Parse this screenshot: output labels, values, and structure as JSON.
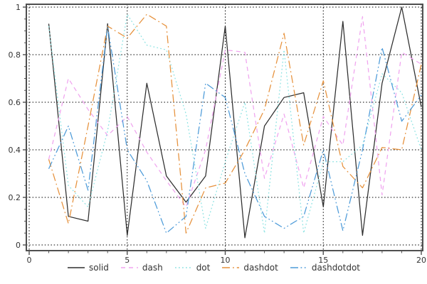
{
  "chart_data": {
    "type": "line",
    "title": "",
    "xlabel": "",
    "ylabel": "",
    "xlim": [
      0,
      20
    ],
    "ylim": [
      0,
      1
    ],
    "x_ticks": [
      0,
      5,
      10,
      15,
      20
    ],
    "x_tick_labels": [
      "0",
      "5",
      "10",
      "15",
      "20"
    ],
    "y_ticks": [
      0,
      0.2,
      0.4,
      0.6,
      0.8,
      1
    ],
    "y_tick_labels": [
      "0",
      "0.2",
      "0.4",
      "0.6",
      "0.8",
      "1"
    ],
    "grid": true,
    "legend_position": "bottom",
    "x": [
      1,
      2,
      3,
      4,
      5,
      6,
      7,
      8,
      9,
      10,
      11,
      12,
      13,
      14,
      15,
      16,
      17,
      18,
      19,
      20
    ],
    "series": [
      {
        "name": "solid",
        "color": "#2e2e2e",
        "dash": "solid",
        "values": [
          0.93,
          0.12,
          0.1,
          0.93,
          0.04,
          0.68,
          0.29,
          0.18,
          0.29,
          0.92,
          0.03,
          0.5,
          0.62,
          0.64,
          0.16,
          0.94,
          0.04,
          0.68,
          1.0,
          0.58
        ]
      },
      {
        "name": "dash",
        "color": "#f0a4ef",
        "dash": "dash",
        "values": [
          0.36,
          0.7,
          0.57,
          0.46,
          0.54,
          0.39,
          0.27,
          0.16,
          0.4,
          0.82,
          0.81,
          0.28,
          0.55,
          0.24,
          0.54,
          0.42,
          0.96,
          0.21,
          0.81,
          0.76
        ]
      },
      {
        "name": "dot",
        "color": "#8ae2e2",
        "dash": "dot",
        "values": [
          0.92,
          0.25,
          0.16,
          0.48,
          0.97,
          0.84,
          0.82,
          0.55,
          0.07,
          0.35,
          0.6,
          0.05,
          0.82,
          0.05,
          0.35,
          0.35,
          0.42,
          0.72,
          0.64,
          0.4
        ]
      },
      {
        "name": "dashdot",
        "color": "#e6913c",
        "dash": "dashdot",
        "values": [
          0.36,
          0.09,
          0.5,
          0.92,
          0.87,
          0.97,
          0.92,
          0.05,
          0.24,
          0.26,
          0.4,
          0.57,
          0.89,
          0.42,
          0.69,
          0.33,
          0.24,
          0.41,
          0.4,
          0.76
        ]
      },
      {
        "name": "dashdotdot",
        "color": "#4d9bd9",
        "dash": "dashdotdot",
        "values": [
          0.32,
          0.5,
          0.23,
          0.92,
          0.4,
          0.27,
          0.05,
          0.12,
          0.68,
          0.62,
          0.3,
          0.12,
          0.07,
          0.12,
          0.4,
          0.06,
          0.4,
          0.83,
          0.52,
          0.63
        ]
      }
    ]
  },
  "legend": {
    "items": [
      {
        "label": "solid"
      },
      {
        "label": "dash"
      },
      {
        "label": "dot"
      },
      {
        "label": "dashdot"
      },
      {
        "label": "dashdotdot"
      }
    ]
  },
  "frame_color": "#4f4f4f",
  "grid_color": "#000000",
  "tick_color": "#333333"
}
